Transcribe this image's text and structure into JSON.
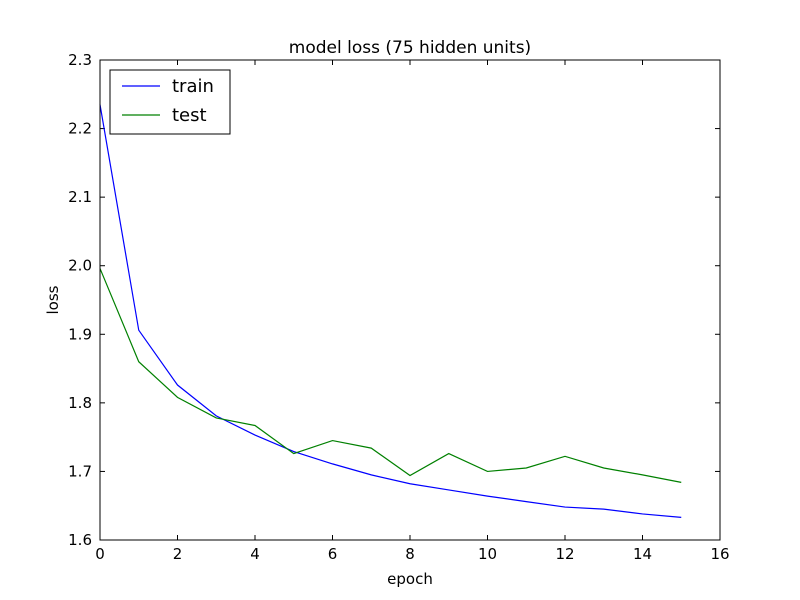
{
  "chart_data": {
    "type": "line",
    "title": "model loss (75 hidden units)",
    "xlabel": "epoch",
    "ylabel": "loss",
    "xlim": [
      0,
      16
    ],
    "ylim": [
      1.6,
      2.3
    ],
    "xticks": [
      "0",
      "2",
      "4",
      "6",
      "8",
      "10",
      "12",
      "14",
      "16"
    ],
    "yticks": [
      "1.6",
      "1.7",
      "1.8",
      "1.9",
      "2.0",
      "2.1",
      "2.2",
      "2.3"
    ],
    "legend": "top-left",
    "grid": false,
    "x": [
      0,
      1,
      2,
      3,
      4,
      5,
      6,
      7,
      8,
      9,
      10,
      11,
      12,
      13,
      14,
      15
    ],
    "series": [
      {
        "name": "train",
        "color": "#0000ff",
        "values": [
          2.235,
          1.906,
          1.826,
          1.781,
          1.753,
          1.729,
          1.711,
          1.695,
          1.682,
          1.673,
          1.664,
          1.656,
          1.648,
          1.645,
          1.638,
          1.633
        ]
      },
      {
        "name": "test",
        "color": "#008000",
        "values": [
          1.996,
          1.86,
          1.808,
          1.778,
          1.767,
          1.726,
          1.745,
          1.734,
          1.694,
          1.726,
          1.7,
          1.705,
          1.722,
          1.705,
          1.695,
          1.684
        ]
      }
    ]
  }
}
